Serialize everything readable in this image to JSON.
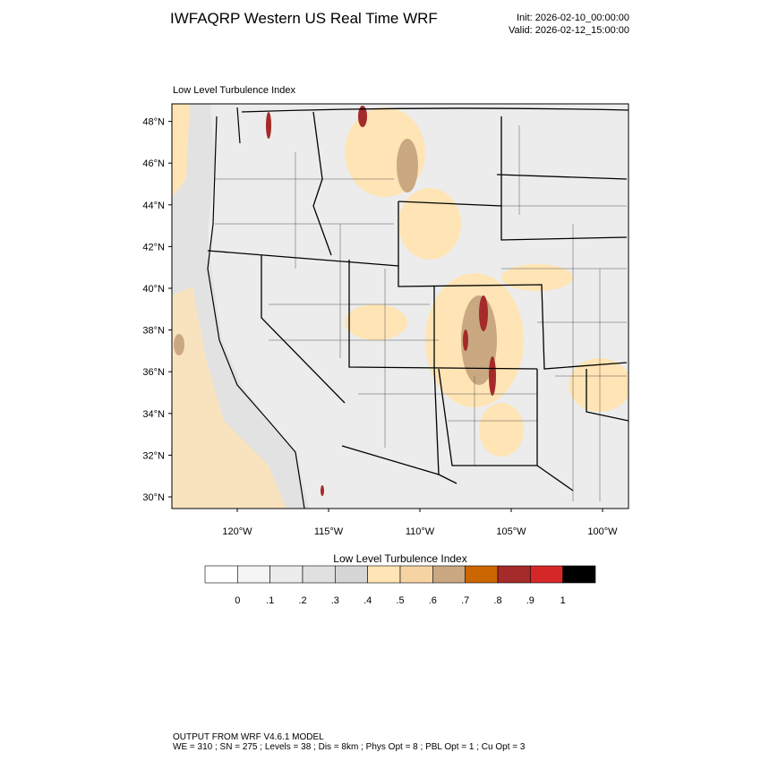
{
  "header": {
    "title": "IWFAQRP Western US Real Time WRF",
    "init": "Init: 2026-02-10_00:00:00",
    "valid": "Valid: 2026-02-12_15:00:00"
  },
  "map": {
    "subtitle": "Low Level Turbulence Index",
    "lat_labels": [
      {
        "value": 48,
        "label": "48°N"
      },
      {
        "value": 46,
        "label": "46°N"
      },
      {
        "value": 44,
        "label": "44°N"
      },
      {
        "value": 42,
        "label": "42°N"
      },
      {
        "value": 40,
        "label": "40°N"
      },
      {
        "value": 38,
        "label": "38°N"
      },
      {
        "value": 36,
        "label": "36°N"
      },
      {
        "value": 34,
        "label": "34°N"
      },
      {
        "value": 32,
        "label": "32°N"
      },
      {
        "value": 30,
        "label": "30°N"
      }
    ],
    "lon_labels": [
      {
        "value": -120,
        "label": "120°W"
      },
      {
        "value": -115,
        "label": "115°W"
      },
      {
        "value": -110,
        "label": "110°W"
      },
      {
        "value": -105,
        "label": "105°W"
      },
      {
        "value": -100,
        "label": "100°W"
      }
    ]
  },
  "colorbar": {
    "title": "Low Level Turbulence Index",
    "colors": [
      "#ffffff",
      "#f5f5f5",
      "#ececec",
      "#e0e0e0",
      "#d6d6d6",
      "#ffe4b5",
      "#f5d3a3",
      "#c9a882",
      "#cc6600",
      "#a52a2a",
      "#d62728",
      "#000000"
    ],
    "labels": [
      {
        "value": 0,
        "label": "0"
      },
      {
        "value": 0.1,
        "label": ".1"
      },
      {
        "value": 0.2,
        "label": ".2"
      },
      {
        "value": 0.3,
        "label": ".3"
      },
      {
        "value": 0.4,
        "label": ".4"
      },
      {
        "value": 0.5,
        "label": ".5"
      },
      {
        "value": 0.6,
        "label": ".6"
      },
      {
        "value": 0.7,
        "label": ".7"
      },
      {
        "value": 0.8,
        "label": ".8"
      },
      {
        "value": 0.9,
        "label": ".9"
      },
      {
        "value": 1,
        "label": "1"
      }
    ]
  },
  "footer": {
    "line1": "OUTPUT FROM WRF V4.6.1 MODEL",
    "line2": "WE = 310 ; SN = 275 ; Levels = 38 ; Dis = 8km ; Phys Opt = 8 ; PBL Opt = 1 ; Cu Opt = 3"
  }
}
